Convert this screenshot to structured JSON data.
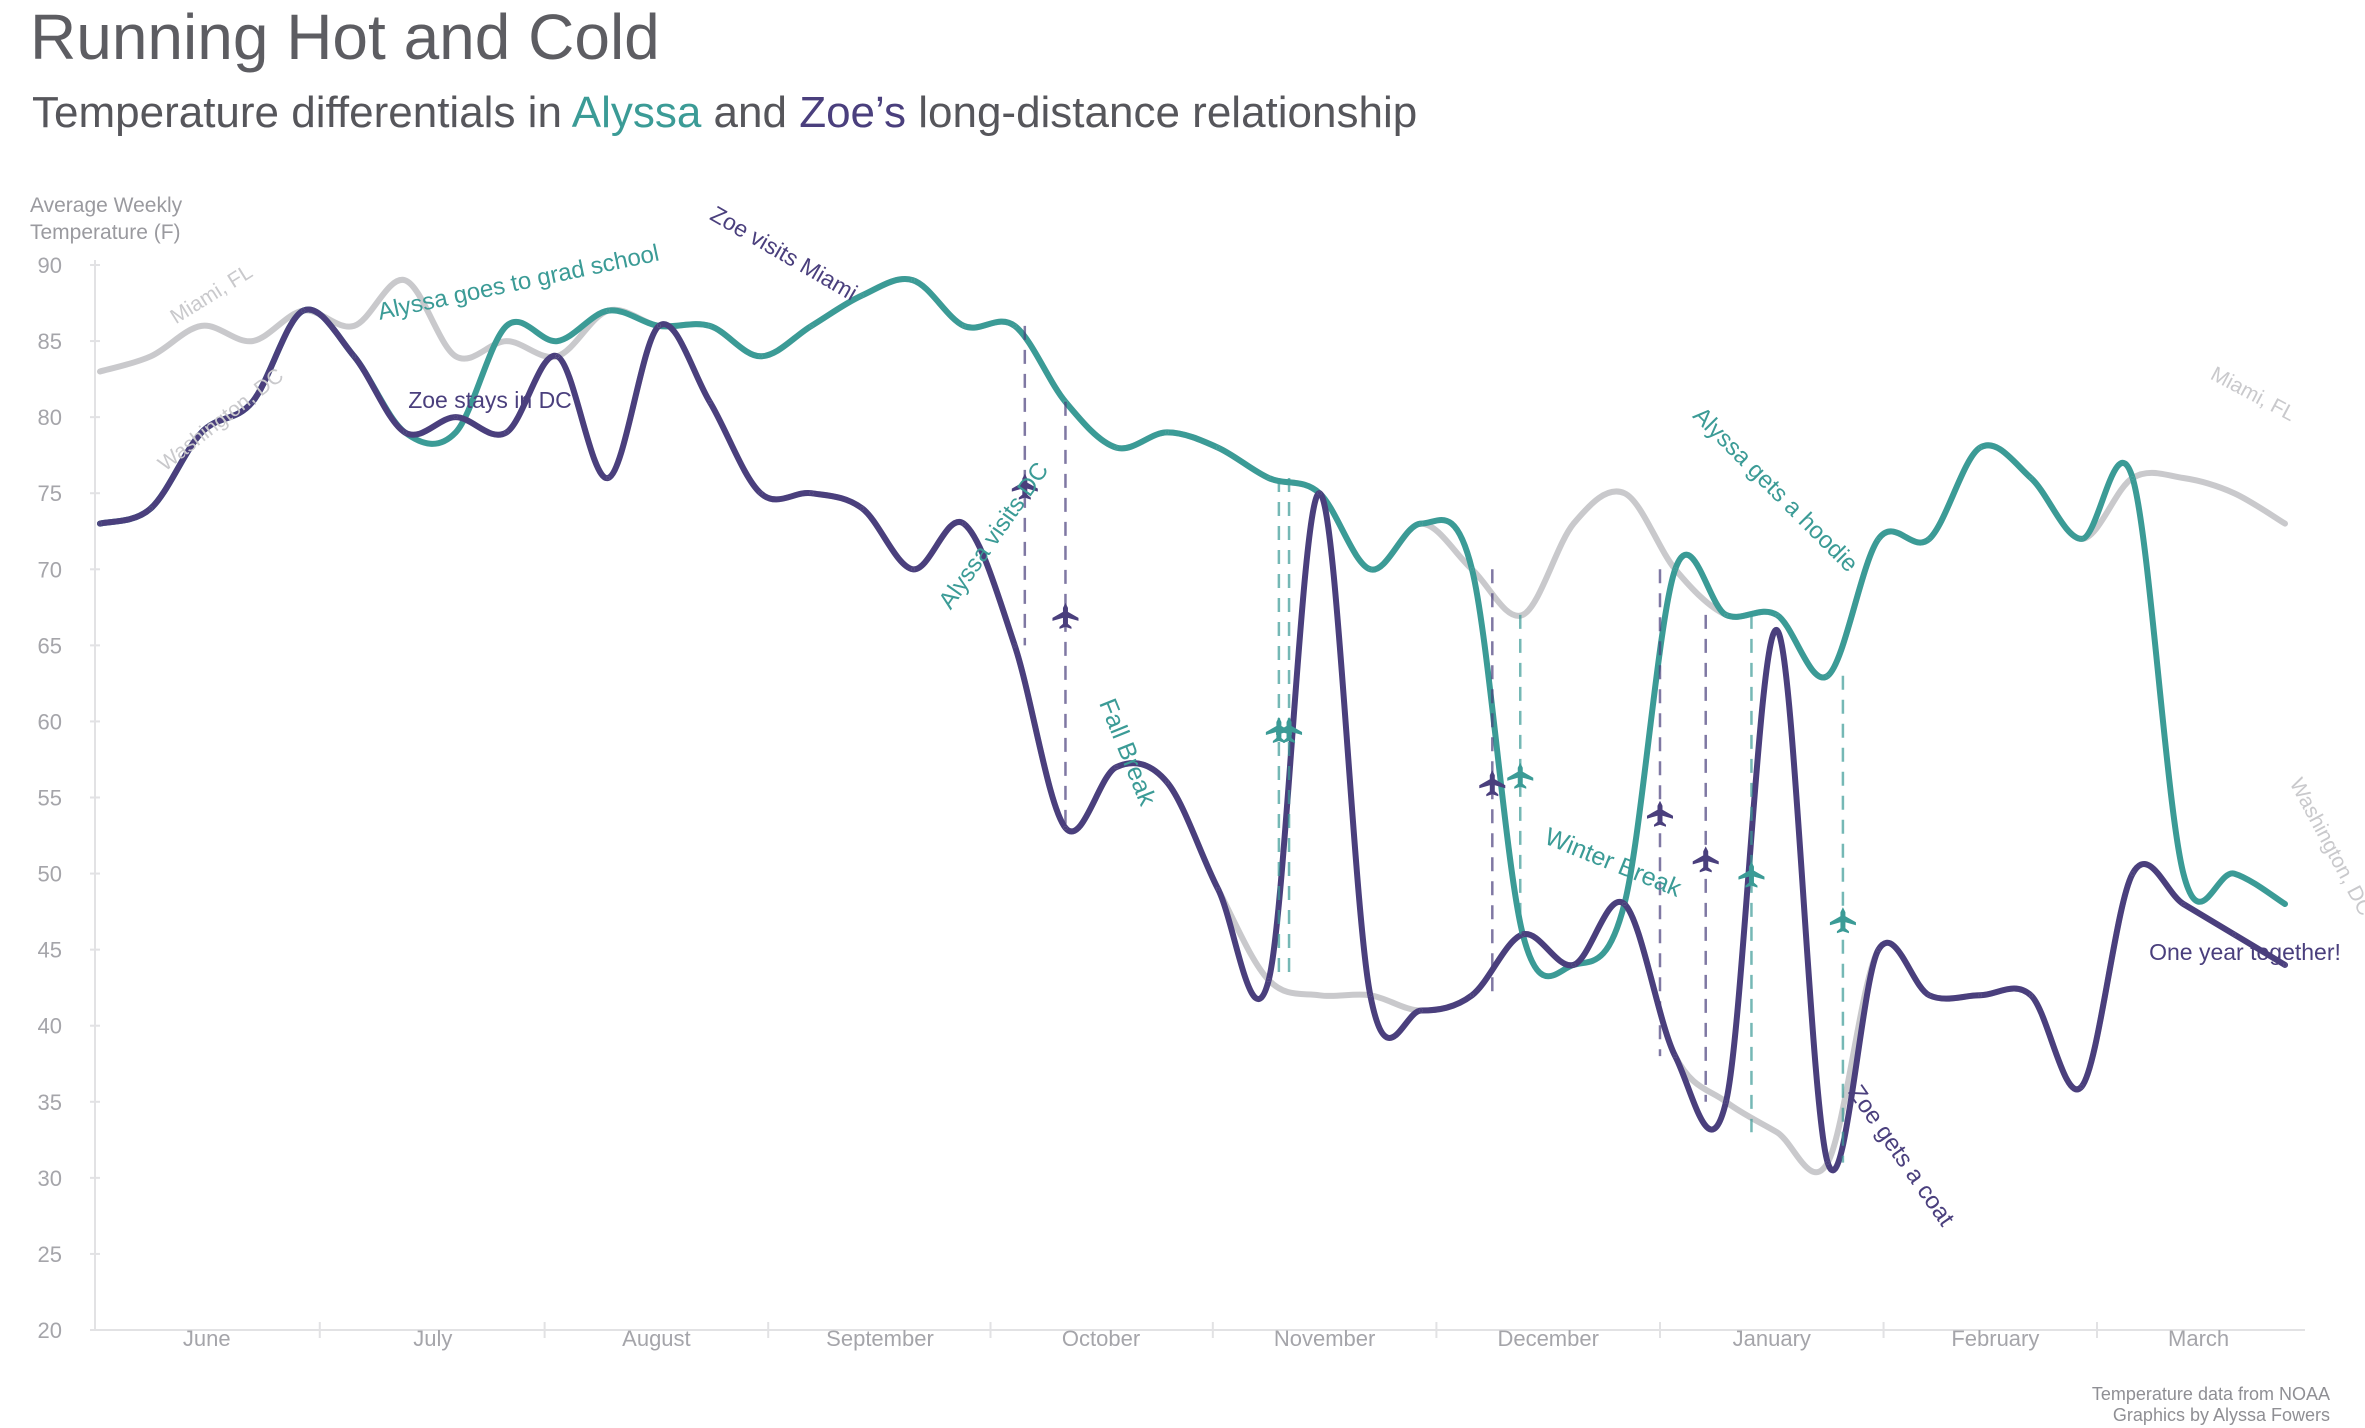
{
  "header": {
    "title": "Running Hot and Cold",
    "subtitle_prefix": "Temperature differentials in ",
    "subtitle_alyssa": "Alyssa",
    "subtitle_and": " and ",
    "subtitle_zoe": "Zoe’s",
    "subtitle_suffix": " long-distance relationship"
  },
  "axis": {
    "ylabel_line1": "Average Weekly",
    "ylabel_line2": "Temperature (F)"
  },
  "source": {
    "line1": "Temperature data from NOAA",
    "line2": "Graphics by Alyssa Fowers"
  },
  "colors": {
    "alyssa": "#3b9b96",
    "zoe": "#4a3f7d",
    "city": "#c9c9cc",
    "grid": "#e2e2e4",
    "tick": "#a5a5aa"
  },
  "chart_data": {
    "type": "line",
    "title": "Running Hot and Cold",
    "subtitle": "Temperature differentials in Alyssa and Zoe’s long-distance relationship",
    "ylabel": "Average Weekly Temperature (F)",
    "xlabel": "",
    "ylim": [
      20,
      90
    ],
    "xlim": [
      0,
      43
    ],
    "yticks": [
      20,
      25,
      30,
      35,
      40,
      45,
      50,
      55,
      60,
      65,
      70,
      75,
      80,
      85,
      90
    ],
    "months": [
      {
        "label": "June",
        "pos": 2.1
      },
      {
        "label": "July",
        "pos": 6.55
      },
      {
        "label": "August",
        "pos": 10.95
      },
      {
        "label": "September",
        "pos": 15.35
      },
      {
        "label": "October",
        "pos": 19.7
      },
      {
        "label": "November",
        "pos": 24.1
      },
      {
        "label": "December",
        "pos": 28.5
      },
      {
        "label": "January",
        "pos": 32.9
      },
      {
        "label": "February",
        "pos": 37.3
      },
      {
        "label": "March",
        "pos": 41.3
      }
    ],
    "x": [
      0,
      1,
      2,
      3,
      4,
      5,
      6,
      7,
      8,
      9,
      10,
      11,
      12,
      13,
      14,
      15,
      16,
      17,
      18,
      19,
      20,
      21,
      22,
      23,
      24,
      25,
      26,
      27,
      28,
      29,
      30,
      31,
      32,
      33,
      34,
      35,
      36,
      37,
      38,
      39,
      40,
      41,
      42,
      43
    ],
    "series": [
      {
        "name": "Miami, FL",
        "values": [
          83,
          84,
          86,
          85,
          87,
          86,
          89,
          84,
          85,
          84,
          87,
          86,
          86,
          84,
          86,
          88,
          89,
          86,
          86,
          81,
          78,
          79,
          78,
          76,
          75,
          70,
          73,
          70,
          67,
          73,
          75,
          70,
          67,
          67,
          63,
          72,
          72,
          78,
          76,
          72,
          76,
          76,
          75,
          73
        ]
      },
      {
        "name": "Washington, DC",
        "values": [
          73,
          74,
          79,
          81,
          87,
          84,
          79,
          80,
          79,
          84,
          76,
          86,
          81,
          75,
          75,
          74,
          70,
          73,
          65,
          53,
          57,
          56,
          49,
          43,
          42,
          42,
          41,
          42,
          46,
          44,
          48,
          38,
          35,
          33,
          31,
          45,
          42,
          42,
          42,
          36,
          50,
          48,
          46,
          44
        ]
      },
      {
        "name": "Alyssa",
        "values": [
          73,
          74,
          79,
          81,
          87,
          84,
          79,
          79,
          86,
          85,
          87,
          86,
          86,
          84,
          86,
          88,
          89,
          86,
          86,
          81,
          78,
          79,
          78,
          76,
          75,
          70,
          73,
          70,
          46,
          44,
          48,
          70,
          67,
          67,
          63,
          72,
          72,
          78,
          76,
          72,
          76,
          50,
          50,
          48
        ]
      },
      {
        "name": "Zoe",
        "values": [
          73,
          74,
          79,
          81,
          87,
          84,
          79,
          80,
          79,
          84,
          76,
          86,
          81,
          75,
          75,
          74,
          70,
          73,
          65,
          53,
          57,
          56,
          49,
          43,
          75,
          42,
          41,
          42,
          46,
          44,
          48,
          38,
          35,
          66,
          31,
          45,
          42,
          42,
          42,
          36,
          50,
          48,
          46,
          44
        ]
      }
    ],
    "labels": {
      "miami_start": "Miami, FL",
      "dc_start": "Washington, DC",
      "miami_end": "Miami, FL",
      "dc_end": "Washington, DC"
    },
    "annotations": [
      {
        "text": "Alyssa goes to grad school",
        "color": "alyssa"
      },
      {
        "text": "Zoe stays in DC",
        "color": "zoe"
      },
      {
        "text": "Zoe visits Miami",
        "color": "zoe"
      },
      {
        "text": "Alyssa visits DC",
        "color": "alyssa"
      },
      {
        "text": "Fall Break",
        "color": "alyssa"
      },
      {
        "text": "Winter Break",
        "color": "alyssa"
      },
      {
        "text": "Alyssa gets a hoodie",
        "color": "alyssa"
      },
      {
        "text": "Zoe gets a coat",
        "color": "zoe"
      },
      {
        "text": "One year together!",
        "color": "zoe"
      }
    ]
  }
}
